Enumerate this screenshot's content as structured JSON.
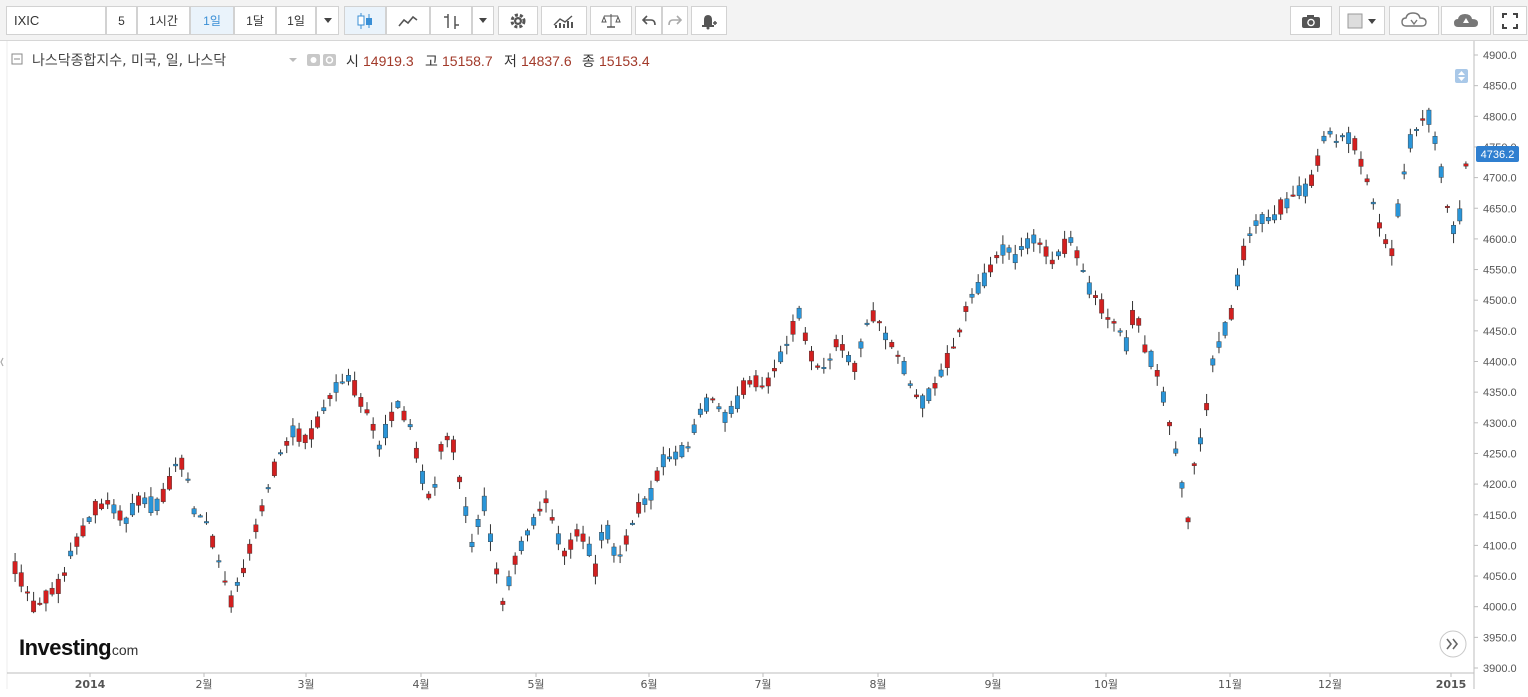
{
  "toolbar": {
    "symbol": "IXIC",
    "intervals": [
      "5",
      "1시간",
      "1일",
      "1달",
      "1일"
    ],
    "active_interval": "1일"
  },
  "legend": {
    "name": "나스닥종합지수, 미국, 일, 나스닥",
    "open_label": "시",
    "open": "14919.3",
    "high_label": "고",
    "high": "15158.7",
    "low_label": "저",
    "low": "14837.6",
    "close_label": "종",
    "close": "15153.4"
  },
  "watermark": {
    "brand": "Investing",
    "suffix": ".com"
  },
  "chart_data": {
    "type": "candlestick",
    "ylim": [
      3900,
      4900
    ],
    "y_ticks": [
      "3900.0",
      "3950.0",
      "4000.0",
      "4050.0",
      "4100.0",
      "4150.0",
      "4200.0",
      "4250.0",
      "4300.0",
      "4350.0",
      "4400.0",
      "4450.0",
      "4500.0",
      "4550.0",
      "4600.0",
      "4650.0",
      "4700.0",
      "4750.0",
      "4800.0",
      "4850.0",
      "4900.0"
    ],
    "x_ticks": [
      "2014",
      "2월",
      "3월",
      "4월",
      "5월",
      "6월",
      "7월",
      "8월",
      "9월",
      "10월",
      "11월",
      "12월",
      "2015"
    ],
    "last_price": "4736.2",
    "up_color": "#2a95d8",
    "down_color": "#d31f1f",
    "anchors": [
      [
        0,
        4065
      ],
      [
        6,
        4000
      ],
      [
        10,
        4015
      ],
      [
        15,
        4035
      ],
      [
        18,
        4085
      ],
      [
        22,
        4125
      ],
      [
        26,
        4160
      ],
      [
        30,
        4170
      ],
      [
        36,
        4140
      ],
      [
        40,
        4175
      ],
      [
        46,
        4165
      ],
      [
        50,
        4200
      ],
      [
        53,
        4245
      ],
      [
        56,
        4210
      ],
      [
        58,
        4155
      ],
      [
        62,
        4140
      ],
      [
        65,
        4090
      ],
      [
        70,
        4010
      ],
      [
        74,
        4060
      ],
      [
        78,
        4130
      ],
      [
        82,
        4195
      ],
      [
        86,
        4250
      ],
      [
        90,
        4285
      ],
      [
        95,
        4270
      ],
      [
        100,
        4320
      ],
      [
        104,
        4360
      ],
      [
        108,
        4375
      ],
      [
        112,
        4335
      ],
      [
        115,
        4310
      ],
      [
        118,
        4260
      ],
      [
        121,
        4300
      ],
      [
        124,
        4330
      ],
      [
        128,
        4295
      ],
      [
        132,
        4210
      ],
      [
        135,
        4165
      ],
      [
        138,
        4260
      ],
      [
        141,
        4285
      ],
      [
        145,
        4185
      ],
      [
        148,
        4100
      ],
      [
        152,
        4170
      ],
      [
        155,
        4080
      ],
      [
        158,
        4005
      ],
      [
        161,
        4060
      ],
      [
        164,
        4100
      ],
      [
        168,
        4140
      ],
      [
        172,
        4175
      ],
      [
        175,
        4125
      ],
      [
        178,
        4085
      ],
      [
        182,
        4120
      ],
      [
        185,
        4110
      ],
      [
        188,
        4060
      ],
      [
        191,
        4140
      ],
      [
        195,
        4075
      ],
      [
        198,
        4110
      ],
      [
        202,
        4160
      ],
      [
        206,
        4185
      ],
      [
        210,
        4240
      ],
      [
        214,
        4245
      ],
      [
        218,
        4260
      ],
      [
        222,
        4320
      ],
      [
        226,
        4340
      ],
      [
        230,
        4310
      ],
      [
        233,
        4325
      ],
      [
        236,
        4350
      ],
      [
        240,
        4370
      ],
      [
        244,
        4360
      ],
      [
        248,
        4395
      ],
      [
        252,
        4440
      ],
      [
        255,
        4480
      ],
      [
        258,
        4420
      ],
      [
        261,
        4390
      ],
      [
        264,
        4390
      ],
      [
        268,
        4440
      ],
      [
        270,
        4410
      ],
      [
        273,
        4390
      ],
      [
        277,
        4460
      ],
      [
        280,
        4480
      ],
      [
        283,
        4440
      ],
      [
        286,
        4420
      ],
      [
        289,
        4390
      ],
      [
        292,
        4350
      ],
      [
        295,
        4335
      ],
      [
        298,
        4350
      ],
      [
        301,
        4380
      ],
      [
        304,
        4410
      ],
      [
        307,
        4450
      ],
      [
        310,
        4500
      ],
      [
        313,
        4520
      ],
      [
        316,
        4540
      ],
      [
        319,
        4570
      ],
      [
        322,
        4585
      ],
      [
        325,
        4570
      ],
      [
        328,
        4590
      ],
      [
        331,
        4600
      ],
      [
        334,
        4590
      ],
      [
        337,
        4560
      ],
      [
        340,
        4580
      ],
      [
        343,
        4600
      ],
      [
        346,
        4560
      ],
      [
        349,
        4520
      ],
      [
        352,
        4500
      ],
      [
        355,
        4470
      ],
      [
        358,
        4460
      ],
      [
        361,
        4430
      ],
      [
        364,
        4490
      ],
      [
        367,
        4420
      ],
      [
        370,
        4400
      ],
      [
        373,
        4340
      ],
      [
        376,
        4280
      ],
      [
        379,
        4200
      ],
      [
        381,
        4140
      ],
      [
        383,
        4230
      ],
      [
        386,
        4290
      ],
      [
        389,
        4400
      ],
      [
        392,
        4440
      ],
      [
        395,
        4480
      ],
      [
        398,
        4560
      ],
      [
        402,
        4620
      ],
      [
        405,
        4630
      ],
      [
        408,
        4630
      ],
      [
        411,
        4650
      ],
      [
        414,
        4665
      ],
      [
        417,
        4680
      ],
      [
        420,
        4680
      ],
      [
        423,
        4730
      ],
      [
        426,
        4780
      ],
      [
        429,
        4760
      ],
      [
        432,
        4770
      ],
      [
        435,
        4755
      ],
      [
        438,
        4710
      ],
      [
        441,
        4660
      ],
      [
        444,
        4600
      ],
      [
        447,
        4580
      ],
      [
        450,
        4680
      ],
      [
        453,
        4760
      ],
      [
        456,
        4790
      ],
      [
        459,
        4800
      ],
      [
        462,
        4740
      ],
      [
        465,
        4650
      ],
      [
        468,
        4600
      ],
      [
        471,
        4720
      ]
    ]
  }
}
